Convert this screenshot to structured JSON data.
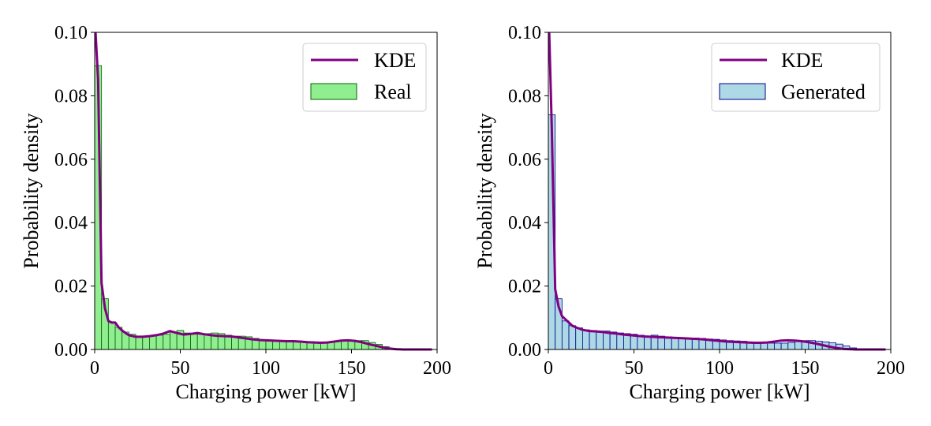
{
  "chart_data": [
    {
      "type": "bar",
      "panel": "left",
      "xlabel": "Charging power [kW]",
      "ylabel": "Probability density",
      "xlim": [
        0,
        200
      ],
      "ylim": [
        0,
        0.1
      ],
      "xticks": [
        "0",
        "50",
        "100",
        "150",
        "200"
      ],
      "yticks": [
        "0.00",
        "0.02",
        "0.04",
        "0.06",
        "0.08",
        "0.10"
      ],
      "bin_width": 4,
      "bar_color": "#90ee90",
      "edge_color": "#006400",
      "kde_color": "#800080",
      "legend_position": "top-right",
      "legend": {
        "kde_label": "KDE",
        "hist_label": "Real"
      },
      "values": [
        0.0895,
        0.016,
        0.0085,
        0.007,
        0.0055,
        0.0048,
        0.0042,
        0.0042,
        0.0042,
        0.0045,
        0.0048,
        0.0055,
        0.006,
        0.0052,
        0.0048,
        0.0048,
        0.005,
        0.0052,
        0.005,
        0.0045,
        0.0042,
        0.0042,
        0.004,
        0.0035,
        0.003,
        0.003,
        0.0028,
        0.0027,
        0.0027,
        0.0026,
        0.0026,
        0.0025,
        0.0024,
        0.0022,
        0.0022,
        0.0025,
        0.0028,
        0.003,
        0.0028,
        0.0028,
        0.0022,
        0.0016,
        0.0009,
        0.0004,
        0.0001,
        0.0,
        0.0,
        0.0,
        0.0,
        0.0
      ],
      "kde_x": [
        0.5,
        2,
        4,
        6,
        8,
        10,
        12,
        14,
        16,
        18,
        20,
        24,
        28,
        32,
        36,
        40,
        44,
        48,
        52,
        56,
        60,
        64,
        68,
        72,
        76,
        80,
        84,
        88,
        92,
        96,
        100,
        104,
        108,
        112,
        116,
        120,
        124,
        128,
        132,
        136,
        140,
        144,
        148,
        152,
        156,
        160,
        164,
        168,
        172,
        176,
        180,
        186,
        192,
        197
      ],
      "kde_y": [
        0.102,
        0.085,
        0.021,
        0.013,
        0.009,
        0.0085,
        0.0085,
        0.007,
        0.006,
        0.0052,
        0.0045,
        0.004,
        0.004,
        0.0042,
        0.0045,
        0.005,
        0.0058,
        0.0052,
        0.0047,
        0.0049,
        0.0052,
        0.0048,
        0.0045,
        0.0043,
        0.0042,
        0.0041,
        0.0038,
        0.0035,
        0.0032,
        0.003,
        0.0029,
        0.0028,
        0.0027,
        0.0026,
        0.0026,
        0.0025,
        0.0023,
        0.0022,
        0.0021,
        0.0022,
        0.0025,
        0.0028,
        0.0029,
        0.0027,
        0.0023,
        0.0017,
        0.0012,
        0.0007,
        0.0003,
        0.0001,
        0.0,
        0.0,
        0.0,
        0.0
      ]
    },
    {
      "type": "bar",
      "panel": "right",
      "xlabel": "Charging power [kW]",
      "ylabel": "Probability density",
      "xlim": [
        0,
        200
      ],
      "ylim": [
        0,
        0.1
      ],
      "xticks": [
        "0",
        "50",
        "100",
        "150",
        "200"
      ],
      "yticks": [
        "0.00",
        "0.02",
        "0.04",
        "0.06",
        "0.08",
        "0.10"
      ],
      "bin_width": 4,
      "bar_color": "#add8e6",
      "edge_color": "#00008b",
      "kde_color": "#800080",
      "legend_position": "top-right",
      "legend": {
        "kde_label": "KDE",
        "hist_label": "Generated"
      },
      "values": [
        0.074,
        0.016,
        0.009,
        0.0075,
        0.0068,
        0.0062,
        0.006,
        0.0058,
        0.0058,
        0.0055,
        0.0052,
        0.005,
        0.0048,
        0.0045,
        0.0042,
        0.0045,
        0.0042,
        0.004,
        0.0038,
        0.0036,
        0.0035,
        0.0036,
        0.0035,
        0.0033,
        0.0032,
        0.003,
        0.0028,
        0.0027,
        0.0026,
        0.0024,
        0.0022,
        0.0022,
        0.002,
        0.002,
        0.002,
        0.0022,
        0.0025,
        0.0028,
        0.0028,
        0.0026,
        0.0024,
        0.0021,
        0.0017,
        0.0011,
        0.0005,
        0.0002,
        0.0001,
        0.0,
        0.0,
        0.0
      ],
      "kde_x": [
        0.5,
        2,
        4,
        6,
        8,
        10,
        12,
        14,
        16,
        20,
        24,
        28,
        32,
        36,
        40,
        44,
        48,
        52,
        56,
        60,
        64,
        68,
        72,
        76,
        80,
        84,
        88,
        92,
        96,
        100,
        104,
        108,
        112,
        116,
        120,
        124,
        128,
        132,
        136,
        140,
        144,
        148,
        152,
        156,
        160,
        164,
        168,
        172,
        176,
        180,
        186,
        192,
        197
      ],
      "kde_y": [
        0.102,
        0.07,
        0.019,
        0.0135,
        0.0105,
        0.0095,
        0.0085,
        0.0075,
        0.007,
        0.0062,
        0.0058,
        0.0057,
        0.0055,
        0.0052,
        0.005,
        0.0047,
        0.0045,
        0.0043,
        0.0041,
        0.004,
        0.0039,
        0.0038,
        0.0037,
        0.0036,
        0.0035,
        0.0034,
        0.0033,
        0.0031,
        0.0029,
        0.0027,
        0.0025,
        0.0024,
        0.0023,
        0.0022,
        0.0021,
        0.0021,
        0.0022,
        0.0025,
        0.0028,
        0.0029,
        0.0028,
        0.0026,
        0.0023,
        0.0019,
        0.0014,
        0.0009,
        0.0005,
        0.0002,
        0.0001,
        0.0,
        0.0,
        0.0,
        0.0
      ]
    }
  ]
}
